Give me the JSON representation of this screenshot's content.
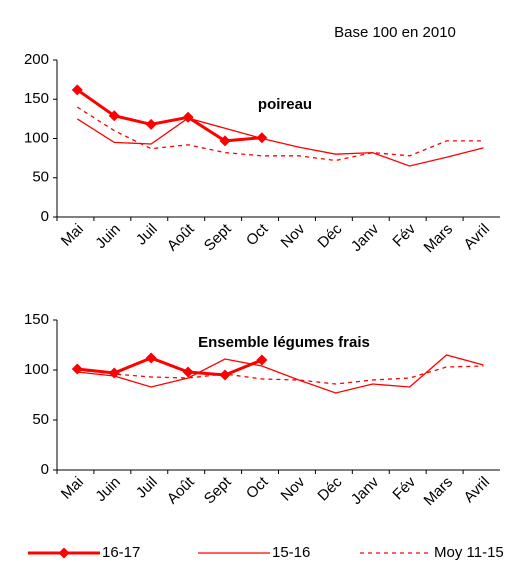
{
  "chart_data": [
    {
      "type": "line",
      "subtitle": "Base 100 en 2010",
      "annotation": "poireau",
      "categories": [
        "Mai",
        "Juin",
        "Juil",
        "Août",
        "Sept",
        "Oct",
        "Nov",
        "Déc",
        "Janv",
        "Fév",
        "Mars",
        "Avril"
      ],
      "ylim": [
        0,
        200
      ],
      "yticks": [
        0,
        50,
        100,
        150,
        200
      ],
      "series": [
        {
          "name": "16-17",
          "color": "#ff0000",
          "width": 3,
          "marker": "diamond",
          "dash": false,
          "values": [
            162,
            129,
            118,
            127,
            97,
            101,
            null,
            null,
            null,
            null,
            null,
            null
          ]
        },
        {
          "name": "15-16",
          "color": "#ff0000",
          "width": 1.3,
          "marker": "none",
          "dash": false,
          "values": [
            125,
            95,
            93,
            126,
            113,
            100,
            89,
            80,
            82,
            65,
            76,
            88
          ]
        },
        {
          "name": "Moy 11-15",
          "color": "#ff0000",
          "width": 1.3,
          "marker": "none",
          "dash": true,
          "values": [
            140,
            110,
            87,
            92,
            82,
            78,
            78,
            72,
            82,
            78,
            97,
            97
          ]
        }
      ]
    },
    {
      "type": "line",
      "annotation": "Ensemble légumes frais",
      "categories": [
        "Mai",
        "Juin",
        "Juil",
        "Août",
        "Sept",
        "Oct",
        "Nov",
        "Déc",
        "Janv",
        "Fév",
        "Mars",
        "Avril"
      ],
      "ylim": [
        0,
        150
      ],
      "yticks": [
        0,
        50,
        100,
        150
      ],
      "series": [
        {
          "color": "#ff0000",
          "width": 3,
          "marker": "diamond",
          "dash": false,
          "values": [
            101,
            97,
            112,
            98,
            95,
            110,
            null,
            null,
            null,
            null,
            null,
            null
          ]
        },
        {
          "color": "#ff0000",
          "width": 1.3,
          "marker": "none",
          "dash": false,
          "values": [
            98,
            94,
            83,
            92,
            111,
            104,
            90,
            77,
            86,
            83,
            115,
            105
          ]
        },
        {
          "color": "#ff0000",
          "width": 1.3,
          "marker": "none",
          "dash": true,
          "values": [
            100,
            96,
            93,
            92,
            96,
            91,
            90,
            86,
            90,
            92,
            103,
            104
          ]
        }
      ]
    }
  ]
}
